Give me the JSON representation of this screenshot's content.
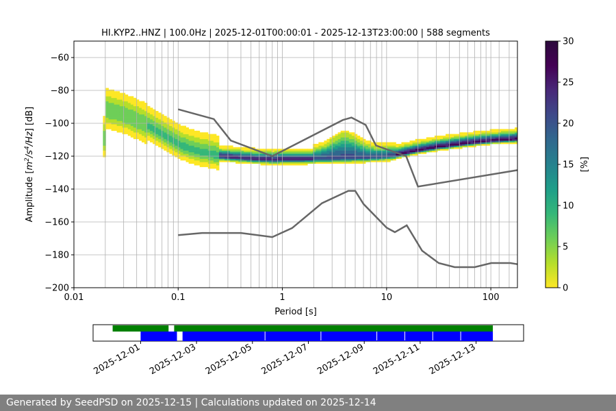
{
  "footer": {
    "text": "Generated by SeedPSD on 2025-12-15 | Calculations updated on 2025-12-14"
  },
  "colorbar": {
    "label": "[%]",
    "min": 0,
    "max": 30,
    "ticks": [
      "0",
      "5",
      "10",
      "15",
      "20",
      "25",
      "30"
    ],
    "colormap": "viridis_r"
  },
  "chart_data": [
    {
      "type": "heatmap",
      "title": "HI.KYP2..HNZ | 100.0Hz | 2025-12-01T00:00:01 - 2025-12-13T23:00:00 | 588 segments",
      "xlabel": "Period [s]",
      "ylabel_parts": {
        "a": "Amplitude [",
        "b": "m",
        "c": "2",
        "d": "/s",
        "e": "4",
        "f": "/Hz",
        "g": "] [dB]"
      },
      "xscale": "log",
      "xlim": [
        0.01,
        180
      ],
      "ylim": [
        -200,
        -50
      ],
      "xticks": [
        {
          "v": 0.01,
          "l": "0.01"
        },
        {
          "v": 0.1,
          "l": "0.1"
        },
        {
          "v": 1,
          "l": "1"
        },
        {
          "v": 10,
          "l": "10"
        },
        {
          "v": 100,
          "l": "100"
        }
      ],
      "yticks": [
        -60,
        -80,
        -100,
        -120,
        -140,
        -160,
        -180,
        -200
      ],
      "yticklabels": [
        "−60",
        "−80",
        "−100",
        "−120",
        "−140",
        "−160",
        "−180",
        "−200"
      ],
      "grid": "vertical lines at analysis periods",
      "grid_periods": [
        0.02,
        0.03,
        0.04,
        0.05,
        0.06,
        0.07,
        0.08,
        0.09,
        0.1,
        0.2,
        0.3,
        0.4,
        0.5,
        0.6,
        0.7,
        0.8,
        0.9,
        1,
        2,
        3,
        4,
        5,
        6,
        7,
        8,
        9,
        10,
        20,
        30,
        40,
        50,
        60,
        70,
        80,
        90,
        100,
        120,
        150
      ],
      "noise_models": [
        {
          "role": "high noise model",
          "points": [
            [
              0.1,
              -91.5
            ],
            [
              0.22,
              -97.4
            ],
            [
              0.32,
              -110.5
            ],
            [
              0.8,
              -120
            ],
            [
              3.8,
              -98
            ],
            [
              4.6,
              -96.5
            ],
            [
              6.3,
              -101
            ],
            [
              7.9,
              -113.5
            ],
            [
              15.4,
              -120
            ],
            [
              20,
              -138.5
            ],
            [
              180,
              -128.5
            ]
          ]
        },
        {
          "role": "low noise model",
          "points": [
            [
              0.1,
              -168
            ],
            [
              0.17,
              -166.7
            ],
            [
              0.4,
              -166.7
            ],
            [
              0.8,
              -169.2
            ],
            [
              1.24,
              -163.7
            ],
            [
              2.4,
              -148.6
            ],
            [
              4.3,
              -141.1
            ],
            [
              5.0,
              -141.1
            ],
            [
              6.0,
              -149.1
            ],
            [
              10,
              -163.5
            ],
            [
              12,
              -166.2
            ],
            [
              15.6,
              -162.1
            ],
            [
              21.9,
              -177.5
            ],
            [
              31.6,
              -185
            ],
            [
              45,
              -187.5
            ],
            [
              70,
              -187.5
            ],
            [
              101,
              -185
            ],
            [
              154,
              -185
            ],
            [
              180,
              -185.7
            ]
          ]
        }
      ],
      "mode_curve": [
        [
          0.02,
          -92
        ],
        [
          0.03,
          -95
        ],
        [
          0.045,
          -100
        ],
        [
          0.07,
          -107
        ],
        [
          0.1,
          -113
        ],
        [
          0.15,
          -117
        ],
        [
          0.25,
          -120
        ],
        [
          0.5,
          -121.5
        ],
        [
          0.8,
          -122
        ],
        [
          1.5,
          -121.8
        ],
        [
          3,
          -121.4
        ],
        [
          5,
          -121
        ],
        [
          8,
          -120.5
        ],
        [
          12,
          -119.5
        ],
        [
          18,
          -117
        ],
        [
          30,
          -114.5
        ],
        [
          60,
          -112
        ],
        [
          100,
          -110.5
        ],
        [
          180,
          -109.5
        ]
      ]
    },
    {
      "type": "timeline",
      "xlabels": [
        "2025-12-01",
        "2025-12-03",
        "2025-12-05",
        "2025-12-07",
        "2025-12-09",
        "2025-12-11",
        "2025-12-13"
      ],
      "tick_days": [
        0,
        2,
        4,
        6,
        8,
        10,
        12
      ],
      "xlim_days": [
        -1.7,
        13.7
      ],
      "bars": [
        {
          "color": "#008000",
          "segments": [
            [
              -1.0,
              1.0
            ],
            [
              1.2,
              12.6
            ]
          ]
        },
        {
          "color": "#0000ff",
          "segments": [
            [
              0.0,
              1.3
            ],
            [
              1.5,
              12.6
            ]
          ]
        }
      ],
      "gap_days": [
        1.45,
        4.45,
        6.45,
        8.45,
        9.45,
        10.45,
        11.45
      ]
    }
  ]
}
